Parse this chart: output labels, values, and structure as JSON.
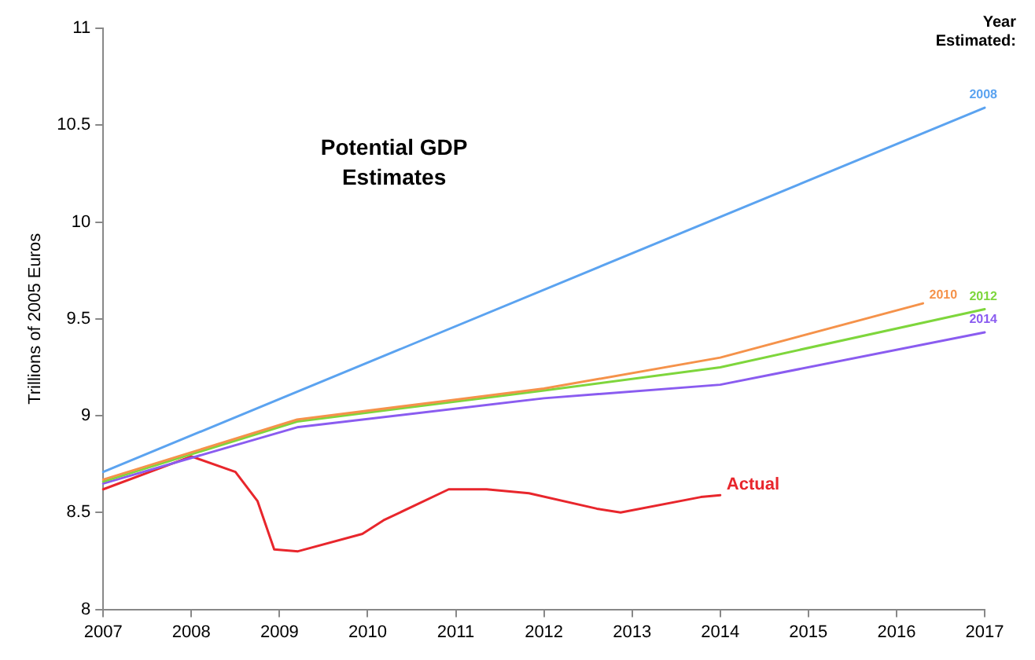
{
  "chart_data": {
    "type": "line",
    "title": "Potential GDP\nEstimates",
    "ylabel": "Trillions of 2005 Euros",
    "legend_title": "Year\nEstimated:",
    "xlim": [
      2007,
      2017
    ],
    "xticks": [
      2007,
      2008,
      2009,
      2010,
      2011,
      2012,
      2013,
      2014,
      2015,
      2016,
      2017
    ],
    "ylim": [
      8,
      11
    ],
    "yticks": [
      8,
      8.5,
      9,
      9.5,
      10,
      10.5,
      11
    ],
    "grid": false,
    "legend": false,
    "marker": "none",
    "line_style": "solid",
    "series": [
      {
        "name": "2008",
        "color": "#5ba3f0",
        "x": [
          2007,
          2017
        ],
        "values": [
          8.71,
          10.59
        ]
      },
      {
        "name": "2010",
        "color": "#f5924a",
        "x": [
          2007,
          2009.2,
          2012,
          2014,
          2016.3
        ],
        "values": [
          8.67,
          8.98,
          9.14,
          9.3,
          9.58
        ]
      },
      {
        "name": "2012",
        "color": "#7ed63c",
        "x": [
          2007,
          2009.2,
          2012,
          2014,
          2017
        ],
        "values": [
          8.66,
          8.97,
          9.13,
          9.25,
          9.55
        ]
      },
      {
        "name": "2014",
        "color": "#8a5cf0",
        "x": [
          2007,
          2009.2,
          2012,
          2014,
          2017
        ],
        "values": [
          8.65,
          8.94,
          9.09,
          9.16,
          9.43
        ]
      },
      {
        "name": "Actual",
        "color": "#e8262c",
        "x": [
          2007,
          2008,
          2008.5,
          2008.75,
          2008.94,
          2009.21,
          2009.94,
          2010.18,
          2010.92,
          2011.35,
          2011.83,
          2012.6,
          2012.87,
          2013.78,
          2014
        ],
        "values": [
          8.62,
          8.79,
          8.71,
          8.56,
          8.31,
          8.3,
          8.39,
          8.46,
          8.62,
          8.62,
          8.6,
          8.52,
          8.5,
          8.58,
          8.59
        ]
      }
    ]
  }
}
